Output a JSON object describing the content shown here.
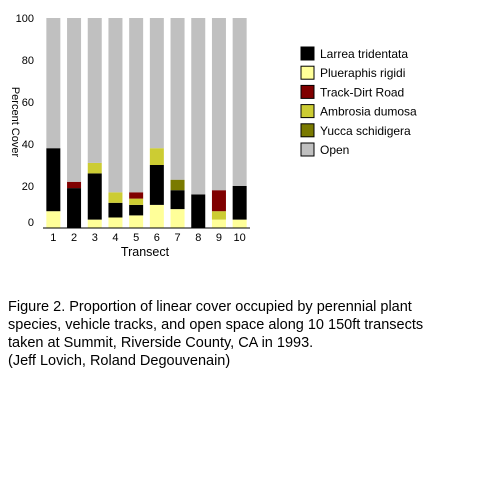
{
  "chart_data": {
    "type": "bar",
    "stacked": true,
    "categories": [
      "1",
      "2",
      "3",
      "4",
      "5",
      "6",
      "7",
      "8",
      "9",
      "10"
    ],
    "xlabel": "Transect",
    "ylabel": "Percent Cover",
    "ylim": [
      0,
      100
    ],
    "yticks": [
      "0",
      "20",
      "40",
      "60",
      "80",
      "100"
    ],
    "legend_position": "right",
    "series": [
      {
        "name": "Plueraphis rigidi",
        "color": "#ffff99",
        "values": [
          8,
          0,
          4,
          5,
          6,
          11,
          9,
          0,
          4,
          4
        ]
      },
      {
        "name": "Larrea tridentata",
        "color": "#000000",
        "values": [
          30,
          19,
          22,
          7,
          5,
          19,
          9,
          16,
          0,
          16
        ]
      },
      {
        "name": "Yucca schidigera",
        "color": "#7a7a00",
        "values": [
          0,
          0,
          0,
          0,
          0,
          0,
          5,
          0,
          0,
          0
        ]
      },
      {
        "name": "Ambrosia dumosa",
        "color": "#cccc33",
        "values": [
          0,
          0,
          5,
          5,
          3,
          8,
          0,
          0,
          4,
          0
        ]
      },
      {
        "name": "Track-Dirt Road",
        "color": "#800000",
        "values": [
          0,
          3,
          0,
          0,
          3,
          0,
          0,
          0,
          10,
          0
        ]
      },
      {
        "name": "Open",
        "color": "#c0c0c0",
        "values": [
          62,
          78,
          69,
          83,
          83,
          62,
          77,
          84,
          82,
          80
        ]
      }
    ],
    "legend_order": [
      "Larrea tridentata",
      "Plueraphis rigidi",
      "Track-Dirt Road",
      "Ambrosia dumosa",
      "Yucca schidigera",
      "Open"
    ]
  },
  "caption": {
    "lines": [
      "Figure 2.  Proportion of linear cover occupied by perennial plant",
      "species, vehicle tracks, and open space along 10 150ft transects",
      "taken at Summit, Riverside County, CA in 1993.",
      "(Jeff Lovich, Roland Degouvenain)"
    ]
  }
}
